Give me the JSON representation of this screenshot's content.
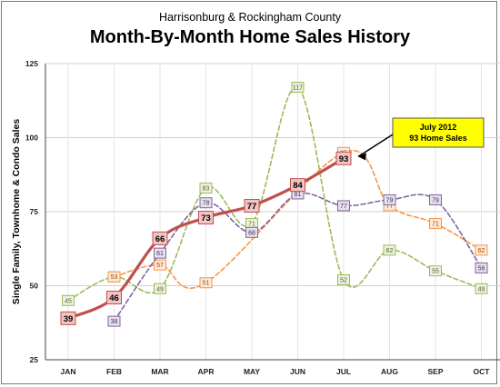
{
  "header": {
    "subtitle": "Harrisonburg & Rockingham County",
    "title": "Month-By-Month Home Sales History"
  },
  "chart_data": {
    "type": "line",
    "title": "Month-By-Month Home Sales History",
    "subtitle": "Harrisonburg & Rockingham County",
    "xlabel": "",
    "ylabel": "Single Family, Townhome & Condo Sales",
    "categories": [
      "JAN",
      "FEB",
      "MAR",
      "APR",
      "MAY",
      "JUN",
      "JUL",
      "AUG",
      "SEP",
      "OCT"
    ],
    "y_tick_labels": [
      "25",
      "50",
      "75",
      "100",
      "125"
    ],
    "ylim": [
      25,
      125
    ],
    "grid": true,
    "series": [
      {
        "values": [
          45,
          53,
          49,
          83,
          71,
          117,
          52,
          62,
          55,
          49
        ],
        "color": "#9bbb59",
        "style": "dashed"
      },
      {
        "values": [
          null,
          53,
          57,
          51,
          null,
          null,
          95,
          77,
          71,
          62
        ],
        "color": "#f79646",
        "style": "dashed"
      },
      {
        "values": [
          null,
          38,
          61,
          78,
          68,
          81,
          77,
          79,
          79,
          56
        ],
        "color": "#8064a2",
        "style": "dashed"
      },
      {
        "values": [
          39,
          46,
          66,
          73,
          77,
          84,
          93,
          null,
          null,
          null
        ],
        "color": "#c0504d",
        "style": "solid"
      }
    ],
    "annotations": [
      {
        "lines": [
          "July 2012",
          "93 Home Sales"
        ],
        "target_category": "JUL",
        "target_value": 93,
        "background": "#ffff00"
      }
    ]
  }
}
